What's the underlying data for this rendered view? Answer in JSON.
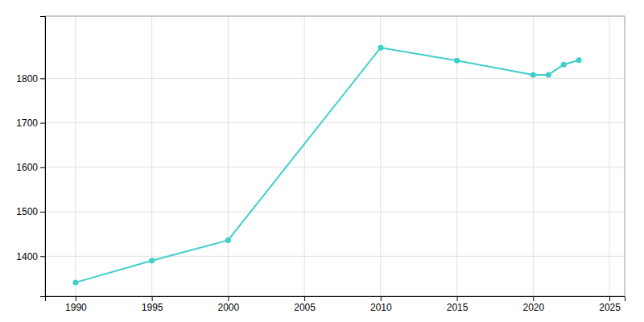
{
  "chart_data": {
    "type": "line",
    "x": [
      1990,
      1995,
      2000,
      2010,
      2015,
      2020,
      2021,
      2022,
      2023
    ],
    "values": [
      1341,
      1390,
      1436,
      1869,
      1840,
      1808,
      1808,
      1831,
      1841
    ],
    "color": "#3ecfca",
    "marker": "circle",
    "xlim": [
      1988,
      2026
    ],
    "ylim": [
      1310,
      1940
    ],
    "xticks": [
      1990,
      1995,
      2000,
      2005,
      2010,
      2015,
      2020,
      2025
    ],
    "yticks": [
      1400,
      1500,
      1600,
      1700,
      1800
    ],
    "grid": true
  }
}
